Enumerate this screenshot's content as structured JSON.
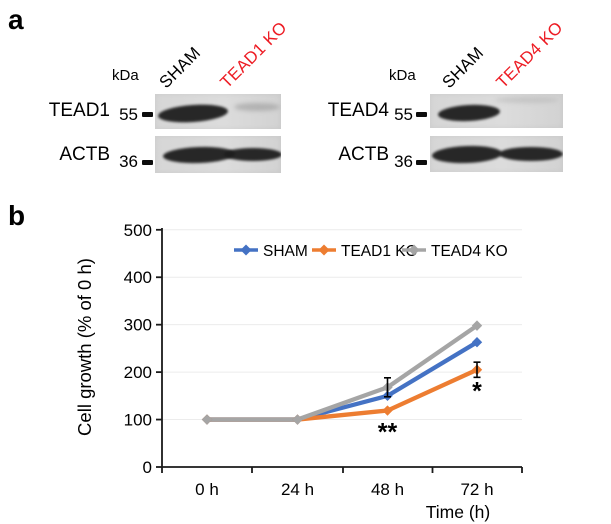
{
  "figure": {
    "background": "#ffffff"
  },
  "panel_a": {
    "label": "a",
    "blots": [
      {
        "unit_label": "kDa",
        "lanes": [
          {
            "label": "SHAM",
            "color": "#000000"
          },
          {
            "label": "TEAD1 KO",
            "color": "#ed1c24"
          }
        ],
        "rows": [
          {
            "protein": "TEAD1",
            "marker": "55",
            "bands": [
              "strong",
              "faint"
            ]
          },
          {
            "protein": "ACTB",
            "marker": "36",
            "bands": [
              "strong",
              "strong"
            ]
          }
        ]
      },
      {
        "unit_label": "kDa",
        "lanes": [
          {
            "label": "SHAM",
            "color": "#000000"
          },
          {
            "label": "TEAD4 KO",
            "color": "#ed1c24"
          }
        ],
        "rows": [
          {
            "protein": "TEAD4",
            "marker": "55",
            "bands": [
              "strong",
              "trace"
            ]
          },
          {
            "protein": "ACTB",
            "marker": "36",
            "bands": [
              "strong",
              "strong"
            ]
          }
        ]
      }
    ]
  },
  "panel_b": {
    "label": "b"
  },
  "chart_data": {
    "type": "line",
    "categories": [
      "0 h",
      "24 h",
      "48 h",
      "72 h"
    ],
    "series": [
      {
        "name": "SHAM",
        "color": "#4472c4",
        "values": [
          100,
          100,
          150,
          263
        ],
        "error": [
          0,
          0,
          0,
          0
        ],
        "annotations": []
      },
      {
        "name": "TEAD1 KO",
        "color": "#ed7d31",
        "values": [
          100,
          100,
          119,
          205
        ],
        "error": [
          0,
          0,
          0,
          16
        ],
        "annotations": [
          {
            "point": 2,
            "text": "**"
          },
          {
            "point": 3,
            "text": "*"
          }
        ]
      },
      {
        "name": "TEAD4 KO",
        "color": "#a5a5a5",
        "values": [
          100,
          100,
          168,
          298
        ],
        "error": [
          0,
          0,
          20,
          0
        ],
        "annotations": []
      }
    ],
    "xlabel": "Time (h)",
    "ylabel": "Cell growth (% of 0 h)",
    "ylim": [
      0,
      500
    ],
    "ytick_step": 100,
    "grid": true,
    "legend_position": "top",
    "axis_color": "#1a1a1a",
    "grid_color": "#ececec"
  }
}
